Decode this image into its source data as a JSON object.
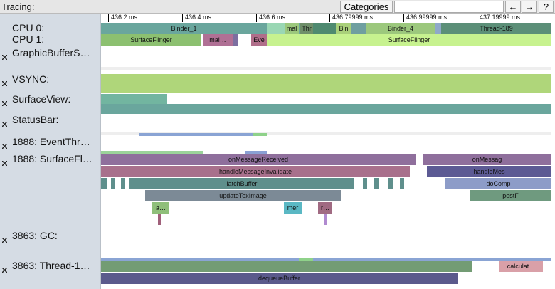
{
  "toolbar": {
    "title": "Tracing:",
    "categories_button": "Categories",
    "buttons": [
      "←",
      "→",
      "?"
    ]
  },
  "ruler": {
    "ticks": [
      "436.2 ms",
      "436.4 ms",
      "436.6 ms",
      "436.79999 ms",
      "436.99999 ms",
      "437.19999 ms"
    ]
  },
  "tracks": [
    {
      "label": "CPU 0:",
      "slices": [
        "Binder_1",
        "mal",
        "Thr",
        "Bin",
        "Binder_4",
        "Thread-189"
      ]
    },
    {
      "label": "CPU 1:",
      "slices": [
        "SurfaceFlinger",
        "mal…",
        "Eve",
        "SurfaceFlinger"
      ]
    },
    {
      "label": "GraphicBufferS…"
    },
    {
      "label": "VSYNC:"
    },
    {
      "label": "SurfaceView:"
    },
    {
      "label": "StatusBar:"
    },
    {
      "label": "1888: EventThr…"
    },
    {
      "label": "1888: SurfaceFl…",
      "slices": [
        "onMessageReceived",
        "onMessag",
        "handleMessageInvalidate",
        "handleMes",
        "latchBuffer",
        "doComp",
        "updateTexImage",
        "postF",
        "a…",
        "mer",
        "r…"
      ]
    },
    {
      "label": "3863: GC:"
    },
    {
      "label": "3863: Thread-1…",
      "slices": [
        "calculat…",
        "dequeueBuffer"
      ]
    }
  ]
}
